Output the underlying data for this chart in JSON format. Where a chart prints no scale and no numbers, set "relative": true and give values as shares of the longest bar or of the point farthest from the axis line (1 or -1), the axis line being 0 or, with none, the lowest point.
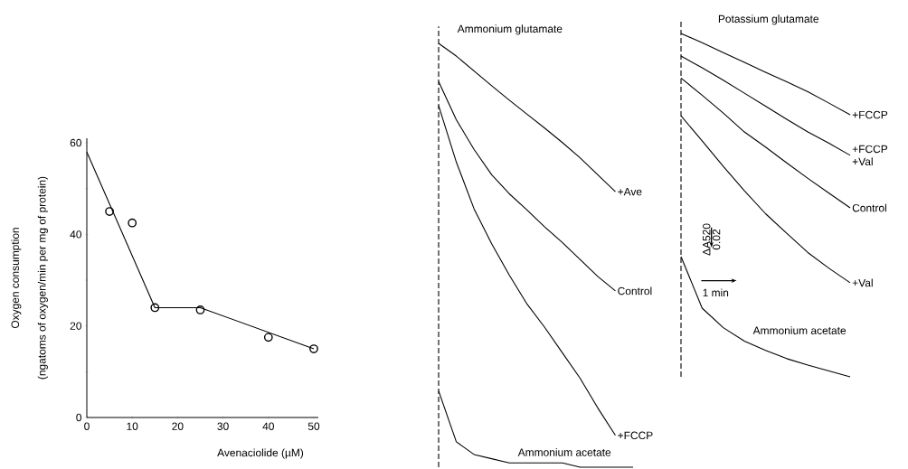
{
  "chart_data": [
    {
      "type": "line",
      "xlabel": "Avenaciolide (µM)",
      "ylabel": "Oxygen consumption",
      "annotations": [
        "(ngatoms of oxygen/min per mg of protein)"
      ],
      "xlim": [
        0,
        51
      ],
      "ylim": [
        0,
        61
      ],
      "xticks": [
        0,
        10,
        20,
        30,
        40,
        50
      ],
      "yticks": [
        0,
        {
          "value": 10,
          "label": null
        },
        20,
        {
          "value": 30,
          "label": null
        },
        40,
        {
          "value": 50,
          "label": null
        },
        60
      ],
      "series": [
        {
          "type": "line",
          "color": "#000000",
          "x": [
            0,
            15,
            25,
            50
          ],
          "values": [
            58,
            24,
            24,
            15
          ]
        },
        {
          "type": "scatter",
          "color": "#000000",
          "marker": "circle",
          "x": [
            5,
            10,
            15,
            25,
            40,
            50
          ],
          "values": [
            45,
            42.5,
            24,
            23.5,
            17.5,
            15
          ]
        }
      ]
    },
    {
      "type": "line",
      "relative": true,
      "title": "Ammonium glutamate",
      "categories": [
        null,
        null,
        null,
        null,
        null,
        null,
        null,
        null,
        null,
        null,
        null,
        null
      ],
      "ref_lines": [
        {
          "axis": "x",
          "line_style": "dashed"
        }
      ],
      "series": [
        {
          "name": "+Ave",
          "color": "#000000",
          "values": [
            1.0,
            0.97,
            0.935,
            0.9,
            0.866,
            0.833,
            0.8,
            0.766,
            0.73,
            0.69,
            0.65,
            null
          ]
        },
        {
          "name": "Control",
          "color": "#000000",
          "values": [
            0.91,
            0.82,
            0.75,
            0.69,
            0.645,
            0.607,
            0.567,
            0.53,
            0.49,
            0.45,
            0.416,
            null
          ]
        },
        {
          "name": "+FCCP",
          "color": "#000000",
          "values": [
            0.853,
            0.72,
            0.61,
            0.527,
            0.453,
            0.385,
            0.33,
            0.27,
            0.21,
            0.14,
            0.075,
            null
          ]
        },
        {
          "name": "Ammonium acetate",
          "color": "#000000",
          "values": [
            0.18,
            0.06,
            0.03,
            0.02,
            0.01,
            0.01,
            0.01,
            0.01,
            0,
            0,
            0,
            0
          ]
        }
      ]
    },
    {
      "type": "line",
      "relative": true,
      "title": "Potassium glutamate",
      "categories": [
        null,
        null,
        null,
        null,
        null,
        null,
        null,
        null,
        null
      ],
      "annotations": [
        "ΔA520",
        "0.02",
        "1 min"
      ],
      "ref_lines": [
        {
          "axis": "x",
          "line_style": "dashed"
        }
      ],
      "series": [
        {
          "name": "+FCCP",
          "color": "#000000",
          "values": [
            1.0,
            0.973,
            0.944,
            0.916,
            0.887,
            0.859,
            0.83,
            0.797,
            0.763
          ]
        },
        {
          "name": "+FCCP +Val",
          "color": "#000000",
          "values": [
            0.934,
            0.9,
            0.864,
            0.826,
            0.788,
            0.75,
            0.713,
            0.68,
            0.645
          ]
        },
        {
          "name": "Control",
          "color": "#000000",
          "values": [
            0.87,
            0.82,
            0.768,
            0.713,
            0.669,
            0.623,
            0.578,
            0.535,
            0.492
          ]
        },
        {
          "name": "+Val",
          "color": "#000000",
          "values": [
            0.76,
            0.687,
            0.613,
            0.542,
            0.475,
            0.418,
            0.362,
            0.316,
            0.274
          ]
        },
        {
          "name": "Ammonium acetate",
          "color": "#000000",
          "values": [
            0.35,
            0.2,
            0.143,
            0.104,
            0.077,
            0.053,
            0.034,
            0.017,
            0
          ]
        }
      ]
    }
  ]
}
